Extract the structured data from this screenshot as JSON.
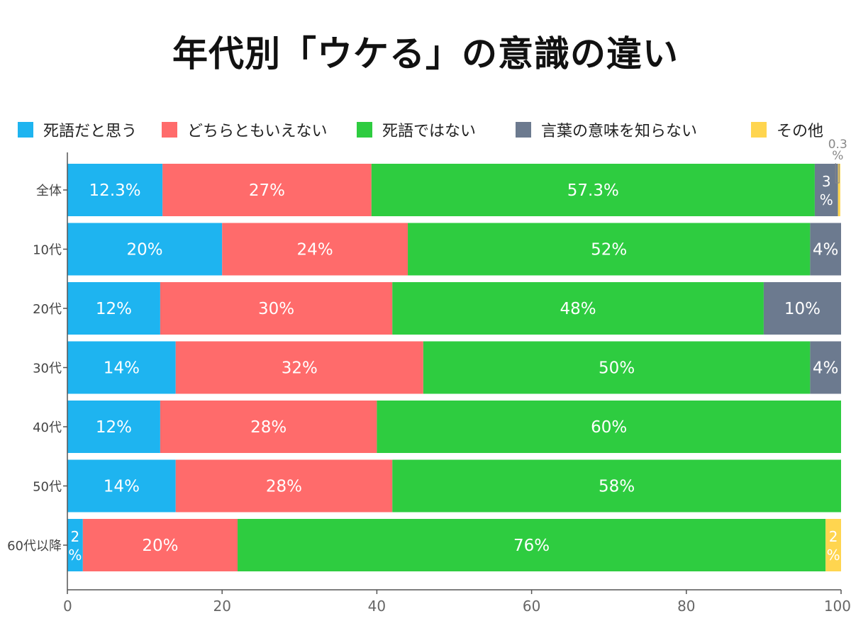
{
  "title": "年代別「ウケる」の意識の違い",
  "chart_data": {
    "type": "bar",
    "orientation": "horizontal",
    "stacked": true,
    "title": "年代別「ウケる」の意識の違い",
    "xlabel": "",
    "ylabel": "",
    "xlim": [
      0,
      100
    ],
    "xticks": [
      0,
      20,
      40,
      60,
      80,
      100
    ],
    "legend_position": "top",
    "categories": [
      "全体",
      "10代",
      "20代",
      "30代",
      "40代",
      "50代",
      "60代以降"
    ],
    "series": [
      {
        "name": "死語だと思う",
        "color": "#1EB4F0",
        "values": [
          12.3,
          20,
          12,
          14,
          12,
          14,
          2
        ],
        "labels": [
          "12.3%",
          "20%",
          "12%",
          "14%",
          "12%",
          "14%",
          "2%"
        ]
      },
      {
        "name": "どちらともいえない",
        "color": "#FF6B6B",
        "values": [
          27,
          24,
          30,
          32,
          28,
          28,
          20
        ],
        "labels": [
          "27%",
          "24%",
          "30%",
          "32%",
          "28%",
          "28%",
          "20%"
        ]
      },
      {
        "name": "死語ではない",
        "color": "#2ECC40",
        "values": [
          57.3,
          52,
          48,
          50,
          60,
          58,
          76
        ],
        "labels": [
          "57.3%",
          "52%",
          "48%",
          "50%",
          "60%",
          "58%",
          "76%"
        ]
      },
      {
        "name": "言葉の意味を知らない",
        "color": "#6C7A8F",
        "values": [
          3,
          4,
          10,
          4,
          0,
          0,
          0
        ],
        "labels": [
          "3%",
          "4%",
          "10%",
          "4%",
          "",
          "",
          ""
        ]
      },
      {
        "name": "その他",
        "color": "#FFD54F",
        "values": [
          0.3,
          0,
          0,
          0,
          0,
          0,
          2
        ],
        "labels": [
          "0.3%",
          "",
          "",
          "",
          "",
          "",
          "2%"
        ]
      }
    ]
  }
}
